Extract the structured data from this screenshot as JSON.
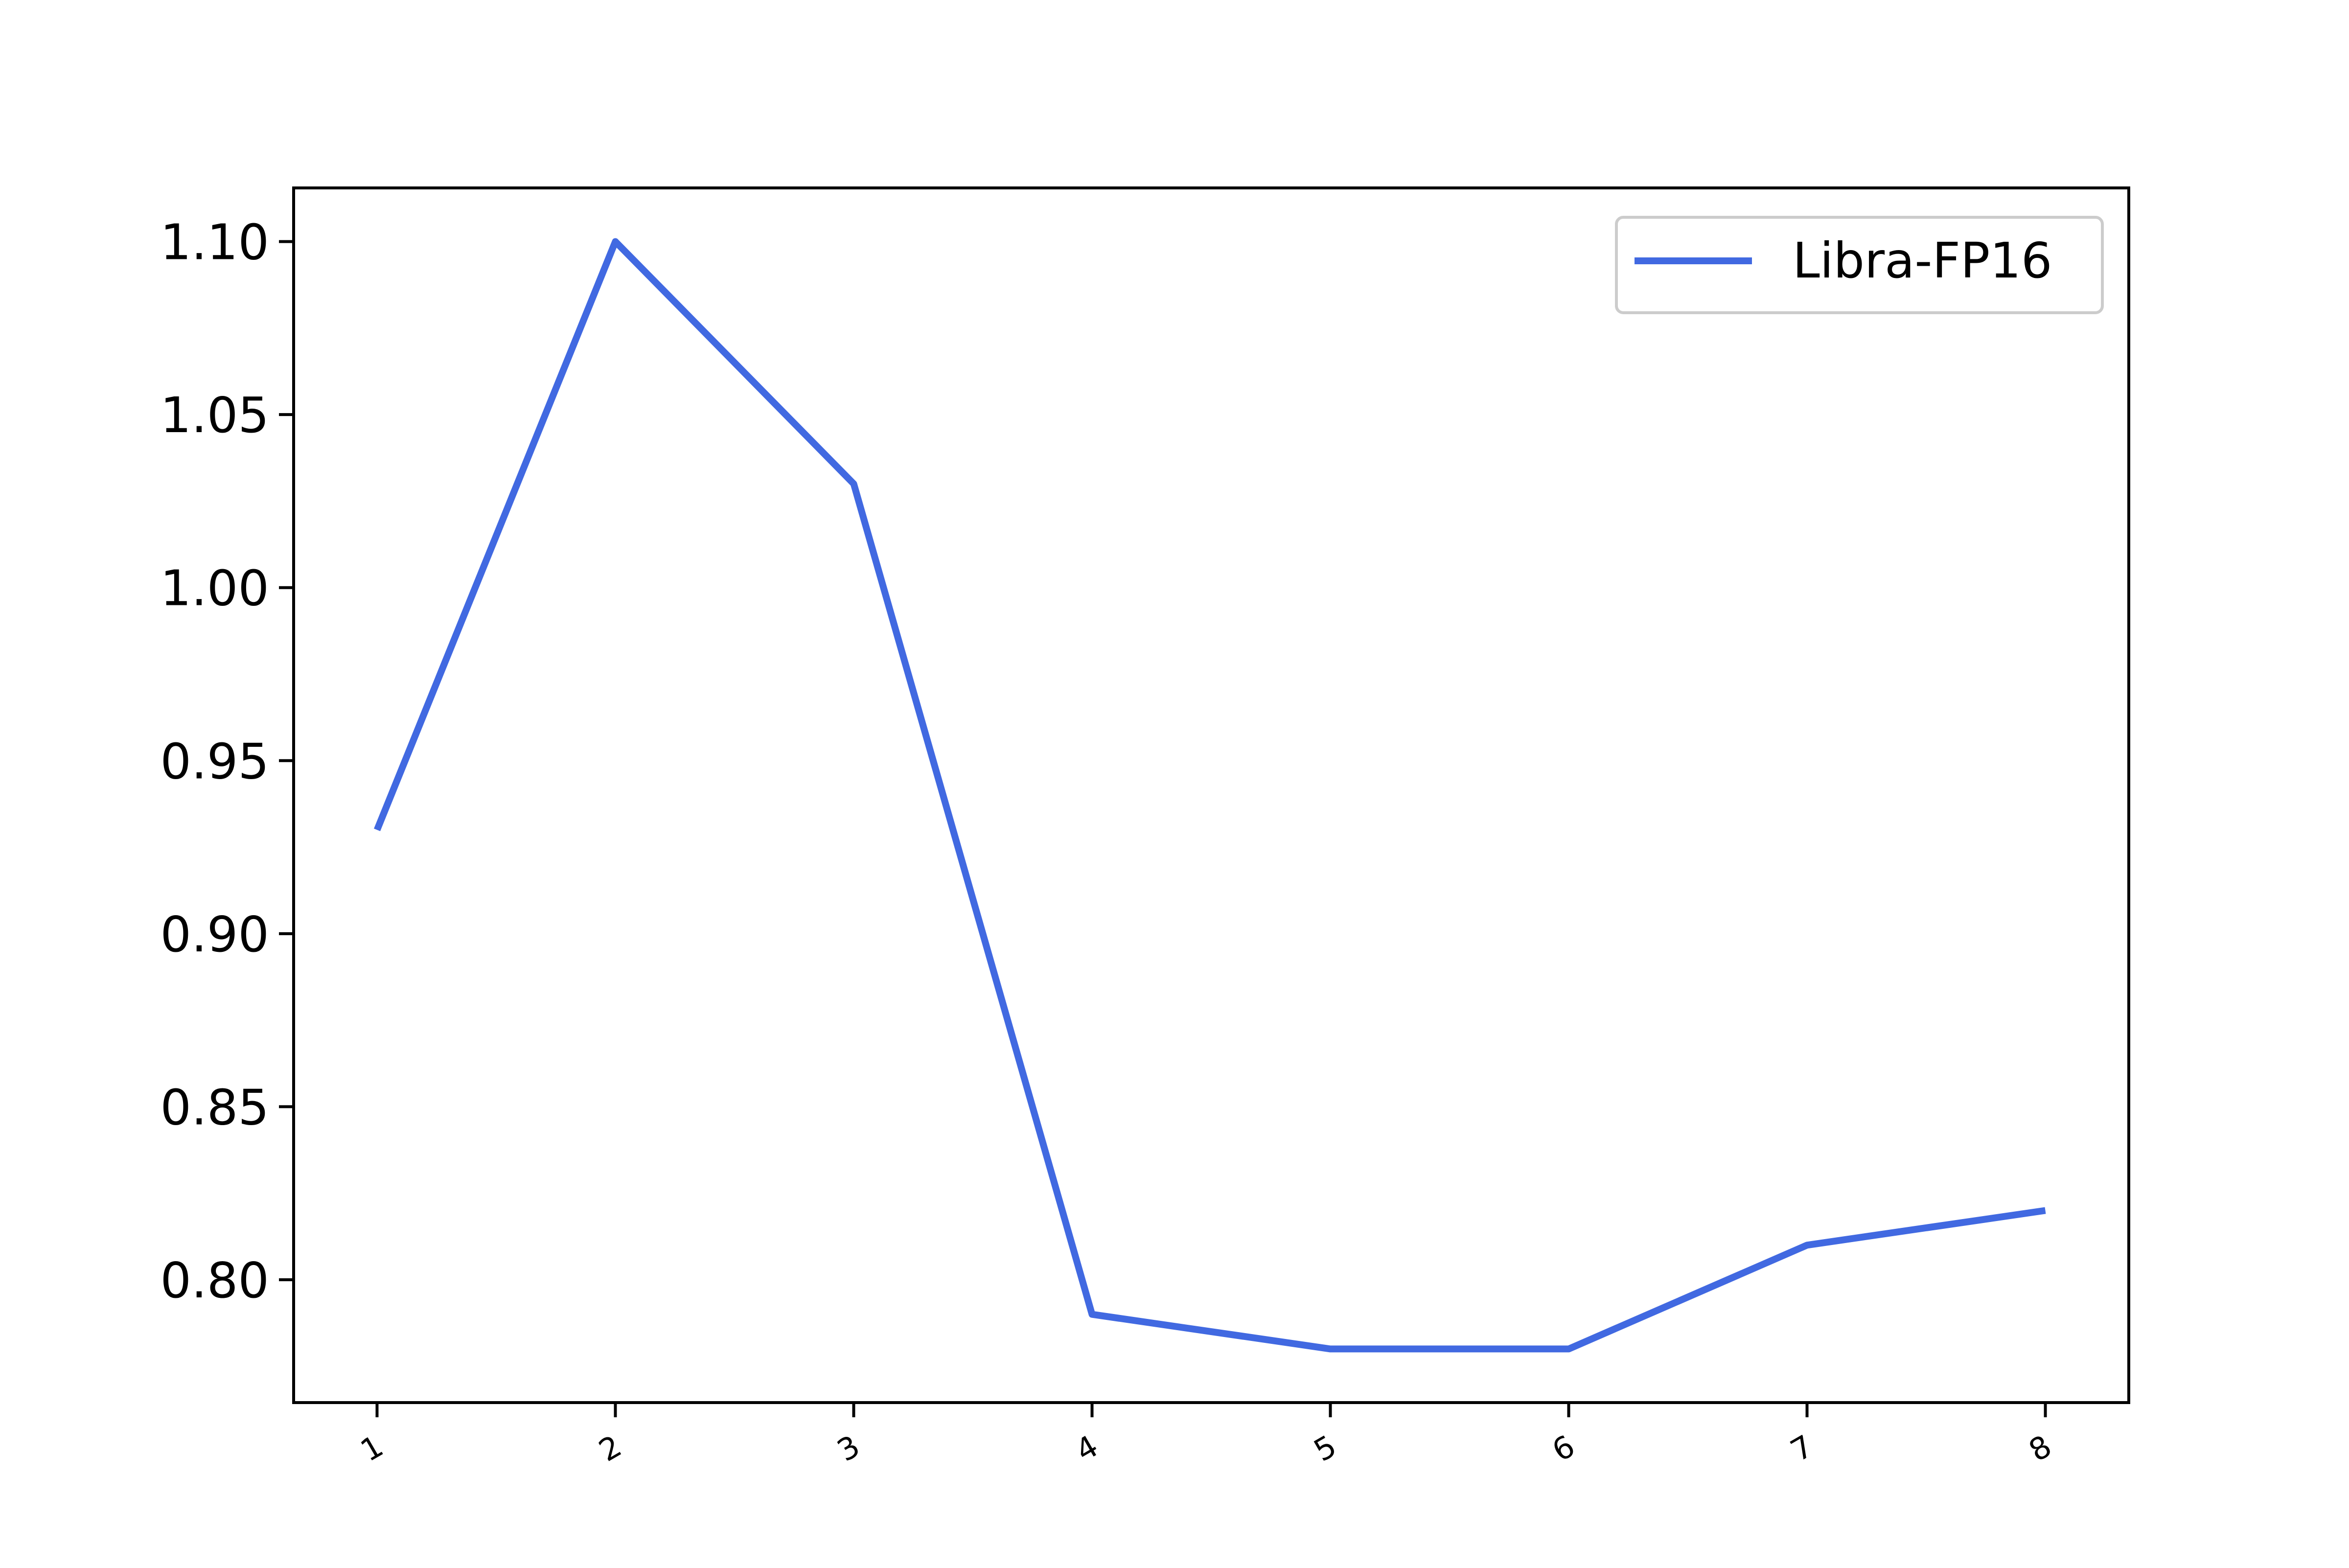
{
  "chart_data": {
    "type": "line",
    "title": "",
    "xlabel": "",
    "ylabel": "",
    "x": [
      1,
      2,
      3,
      4,
      5,
      6,
      7,
      8
    ],
    "x_tick_labels": [
      "1",
      "2",
      "3",
      "4",
      "5",
      "6",
      "7",
      "8"
    ],
    "y_tick_labels": [
      "0.80",
      "0.85",
      "0.90",
      "0.95",
      "1.00",
      "1.05",
      "1.10"
    ],
    "y_ticks": [
      0.8,
      0.85,
      0.9,
      0.95,
      1.0,
      1.05,
      1.1
    ],
    "ylim": [
      0.7645,
      1.1155
    ],
    "xlim": [
      0.65,
      8.35
    ],
    "grid": false,
    "legend_position": "top-right",
    "series": [
      {
        "name": "Libra-FP16",
        "color": "#4169e1",
        "values": [
          0.93,
          1.1,
          1.03,
          0.79,
          0.78,
          0.78,
          0.81,
          0.82
        ]
      }
    ]
  }
}
